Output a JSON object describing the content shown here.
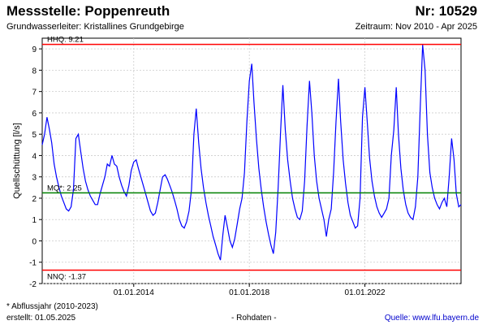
{
  "header": {
    "title": "Messstelle: Poppenreuth",
    "number": "Nr: 10529",
    "subtitle": "Grundwasserleiter: Kristallines Grundgebirge",
    "period": "Zeitraum: Nov 2010 - Apr 2025"
  },
  "footer": {
    "note": "* Abflussjahr (2010-2023)",
    "created": "erstellt:  01.05.2025",
    "raw": "- Rohdaten -",
    "source": "Quelle:  www.lfu.bayern.de"
  },
  "colors": {
    "series": "#0000ff",
    "limit_lines": "#ff0000",
    "mean_line": "#008000",
    "grid": "#cccccc"
  },
  "chart_data": {
    "type": "line",
    "title": "Messstelle: Poppenreuth",
    "ylabel": "Quellschüttung [l/s]",
    "xlabel": "",
    "ylim": [
      -2,
      9.5
    ],
    "xlim": [
      "2010-11-01",
      "2025-04-30"
    ],
    "yticks": [
      -2,
      -1,
      0,
      1,
      2,
      3,
      4,
      5,
      6,
      7,
      8,
      9
    ],
    "xticks": [
      {
        "date": "2014-01-01",
        "label": "01.01.2014"
      },
      {
        "date": "2018-01-01",
        "label": "01.01.2018"
      },
      {
        "date": "2022-01-01",
        "label": "01.01.2022"
      }
    ],
    "grid": true,
    "reference_lines": [
      {
        "name": "HHQ",
        "label": "HHQ: 9.21",
        "value": 9.21,
        "color": "#ff0000"
      },
      {
        "name": "MQ",
        "label": "MQ*: 2.25",
        "value": 2.25,
        "color": "#008000"
      },
      {
        "name": "NNQ",
        "label": "NNQ: -1.37",
        "value": -1.37,
        "color": "#ff0000"
      }
    ],
    "series": [
      {
        "values": [
          [
            "2010-11-01",
            4.5
          ],
          [
            "2010-12-01",
            5.0
          ],
          [
            "2011-01-01",
            5.8
          ],
          [
            "2011-02-01",
            5.2
          ],
          [
            "2011-03-01",
            4.6
          ],
          [
            "2011-04-01",
            3.6
          ],
          [
            "2011-05-01",
            3.0
          ],
          [
            "2011-06-01",
            2.5
          ],
          [
            "2011-07-01",
            2.1
          ],
          [
            "2011-08-01",
            1.8
          ],
          [
            "2011-09-01",
            1.5
          ],
          [
            "2011-10-01",
            1.4
          ],
          [
            "2011-11-01",
            1.6
          ],
          [
            "2011-12-01",
            2.4
          ],
          [
            "2012-01-01",
            4.8
          ],
          [
            "2012-02-01",
            5.0
          ],
          [
            "2012-03-01",
            4.2
          ],
          [
            "2012-04-01",
            3.4
          ],
          [
            "2012-05-01",
            2.8
          ],
          [
            "2012-06-01",
            2.4
          ],
          [
            "2012-07-01",
            2.1
          ],
          [
            "2012-08-01",
            1.9
          ],
          [
            "2012-09-01",
            1.7
          ],
          [
            "2012-10-01",
            1.7
          ],
          [
            "2012-11-01",
            2.2
          ],
          [
            "2012-12-01",
            2.6
          ],
          [
            "2013-01-01",
            3.0
          ],
          [
            "2013-02-01",
            3.6
          ],
          [
            "2013-03-01",
            3.5
          ],
          [
            "2013-04-01",
            4.0
          ],
          [
            "2013-05-01",
            3.6
          ],
          [
            "2013-06-01",
            3.5
          ],
          [
            "2013-07-01",
            3.0
          ],
          [
            "2013-08-01",
            2.6
          ],
          [
            "2013-09-01",
            2.3
          ],
          [
            "2013-10-01",
            2.1
          ],
          [
            "2013-11-01",
            2.6
          ],
          [
            "2013-12-01",
            3.3
          ],
          [
            "2014-01-01",
            3.7
          ],
          [
            "2014-02-01",
            3.8
          ],
          [
            "2014-03-01",
            3.4
          ],
          [
            "2014-04-01",
            3.0
          ],
          [
            "2014-05-01",
            2.6
          ],
          [
            "2014-06-01",
            2.2
          ],
          [
            "2014-07-01",
            1.8
          ],
          [
            "2014-08-01",
            1.4
          ],
          [
            "2014-09-01",
            1.2
          ],
          [
            "2014-10-01",
            1.3
          ],
          [
            "2014-11-01",
            1.8
          ],
          [
            "2014-12-01",
            2.4
          ],
          [
            "2015-01-01",
            3.0
          ],
          [
            "2015-02-01",
            3.1
          ],
          [
            "2015-03-01",
            2.9
          ],
          [
            "2015-04-01",
            2.6
          ],
          [
            "2015-05-01",
            2.3
          ],
          [
            "2015-06-01",
            1.9
          ],
          [
            "2015-07-01",
            1.5
          ],
          [
            "2015-08-01",
            1.0
          ],
          [
            "2015-09-01",
            0.7
          ],
          [
            "2015-10-01",
            0.6
          ],
          [
            "2015-11-01",
            0.9
          ],
          [
            "2015-12-01",
            1.4
          ],
          [
            "2016-01-01",
            2.4
          ],
          [
            "2016-02-01",
            5.0
          ],
          [
            "2016-03-01",
            6.2
          ],
          [
            "2016-04-01",
            4.6
          ],
          [
            "2016-05-01",
            3.4
          ],
          [
            "2016-06-01",
            2.5
          ],
          [
            "2016-07-01",
            1.8
          ],
          [
            "2016-08-01",
            1.2
          ],
          [
            "2016-09-01",
            0.7
          ],
          [
            "2016-10-01",
            0.2
          ],
          [
            "2016-11-01",
            -0.2
          ],
          [
            "2016-12-01",
            -0.6
          ],
          [
            "2017-01-01",
            -0.9
          ],
          [
            "2017-02-01",
            0.3
          ],
          [
            "2017-03-01",
            1.2
          ],
          [
            "2017-04-01",
            0.6
          ],
          [
            "2017-05-01",
            0.0
          ],
          [
            "2017-06-01",
            -0.3
          ],
          [
            "2017-07-01",
            0.1
          ],
          [
            "2017-08-01",
            0.8
          ],
          [
            "2017-09-01",
            1.5
          ],
          [
            "2017-10-01",
            2.0
          ],
          [
            "2017-11-01",
            3.2
          ],
          [
            "2017-12-01",
            5.6
          ],
          [
            "2018-01-01",
            7.5
          ],
          [
            "2018-02-01",
            8.3
          ],
          [
            "2018-03-01",
            6.5
          ],
          [
            "2018-04-01",
            4.8
          ],
          [
            "2018-05-01",
            3.4
          ],
          [
            "2018-06-01",
            2.4
          ],
          [
            "2018-07-01",
            1.6
          ],
          [
            "2018-08-01",
            0.9
          ],
          [
            "2018-09-01",
            0.3
          ],
          [
            "2018-10-01",
            -0.2
          ],
          [
            "2018-11-01",
            -0.6
          ],
          [
            "2018-12-01",
            0.4
          ],
          [
            "2019-01-01",
            2.5
          ],
          [
            "2019-02-01",
            5.2
          ],
          [
            "2019-03-01",
            7.3
          ],
          [
            "2019-04-01",
            5.2
          ],
          [
            "2019-05-01",
            3.8
          ],
          [
            "2019-06-01",
            2.8
          ],
          [
            "2019-07-01",
            2.0
          ],
          [
            "2019-08-01",
            1.5
          ],
          [
            "2019-09-01",
            1.1
          ],
          [
            "2019-10-01",
            1.0
          ],
          [
            "2019-11-01",
            1.4
          ],
          [
            "2019-12-01",
            2.8
          ],
          [
            "2020-01-01",
            5.4
          ],
          [
            "2020-02-01",
            7.5
          ],
          [
            "2020-03-01",
            6.0
          ],
          [
            "2020-04-01",
            4.0
          ],
          [
            "2020-05-01",
            2.8
          ],
          [
            "2020-06-01",
            2.0
          ],
          [
            "2020-07-01",
            1.5
          ],
          [
            "2020-08-01",
            1.0
          ],
          [
            "2020-09-01",
            0.2
          ],
          [
            "2020-10-01",
            1.0
          ],
          [
            "2020-11-01",
            1.5
          ],
          [
            "2020-12-01",
            3.2
          ],
          [
            "2021-01-01",
            5.6
          ],
          [
            "2021-02-01",
            7.6
          ],
          [
            "2021-03-01",
            5.6
          ],
          [
            "2021-04-01",
            3.8
          ],
          [
            "2021-05-01",
            2.7
          ],
          [
            "2021-06-01",
            1.8
          ],
          [
            "2021-07-01",
            1.2
          ],
          [
            "2021-08-01",
            0.9
          ],
          [
            "2021-09-01",
            0.6
          ],
          [
            "2021-10-01",
            0.7
          ],
          [
            "2021-11-01",
            2.0
          ],
          [
            "2021-12-01",
            5.8
          ],
          [
            "2022-01-01",
            7.2
          ],
          [
            "2022-02-01",
            5.5
          ],
          [
            "2022-03-01",
            3.9
          ],
          [
            "2022-04-01",
            2.8
          ],
          [
            "2022-05-01",
            2.1
          ],
          [
            "2022-06-01",
            1.6
          ],
          [
            "2022-07-01",
            1.3
          ],
          [
            "2022-08-01",
            1.1
          ],
          [
            "2022-09-01",
            1.3
          ],
          [
            "2022-10-01",
            1.5
          ],
          [
            "2022-11-01",
            2.0
          ],
          [
            "2022-12-01",
            4.0
          ],
          [
            "2023-01-01",
            5.2
          ],
          [
            "2023-02-01",
            7.2
          ],
          [
            "2023-03-01",
            5.0
          ],
          [
            "2023-04-01",
            3.4
          ],
          [
            "2023-05-01",
            2.4
          ],
          [
            "2023-06-01",
            1.7
          ],
          [
            "2023-07-01",
            1.3
          ],
          [
            "2023-08-01",
            1.1
          ],
          [
            "2023-09-01",
            1.0
          ],
          [
            "2023-10-01",
            1.6
          ],
          [
            "2023-11-01",
            3.0
          ],
          [
            "2023-12-01",
            6.2
          ],
          [
            "2024-01-01",
            9.2
          ],
          [
            "2024-02-01",
            8.0
          ],
          [
            "2024-03-01",
            5.0
          ],
          [
            "2024-04-01",
            3.2
          ],
          [
            "2024-05-01",
            2.5
          ],
          [
            "2024-06-01",
            2.0
          ],
          [
            "2024-07-01",
            1.7
          ],
          [
            "2024-08-01",
            1.5
          ],
          [
            "2024-09-01",
            1.8
          ],
          [
            "2024-10-01",
            2.0
          ],
          [
            "2024-11-01",
            1.6
          ],
          [
            "2024-12-01",
            3.0
          ],
          [
            "2025-01-01",
            4.8
          ],
          [
            "2025-02-01",
            3.8
          ],
          [
            "2025-03-01",
            2.2
          ],
          [
            "2025-04-01",
            1.6
          ],
          [
            "2025-04-30",
            1.7
          ]
        ]
      }
    ]
  }
}
